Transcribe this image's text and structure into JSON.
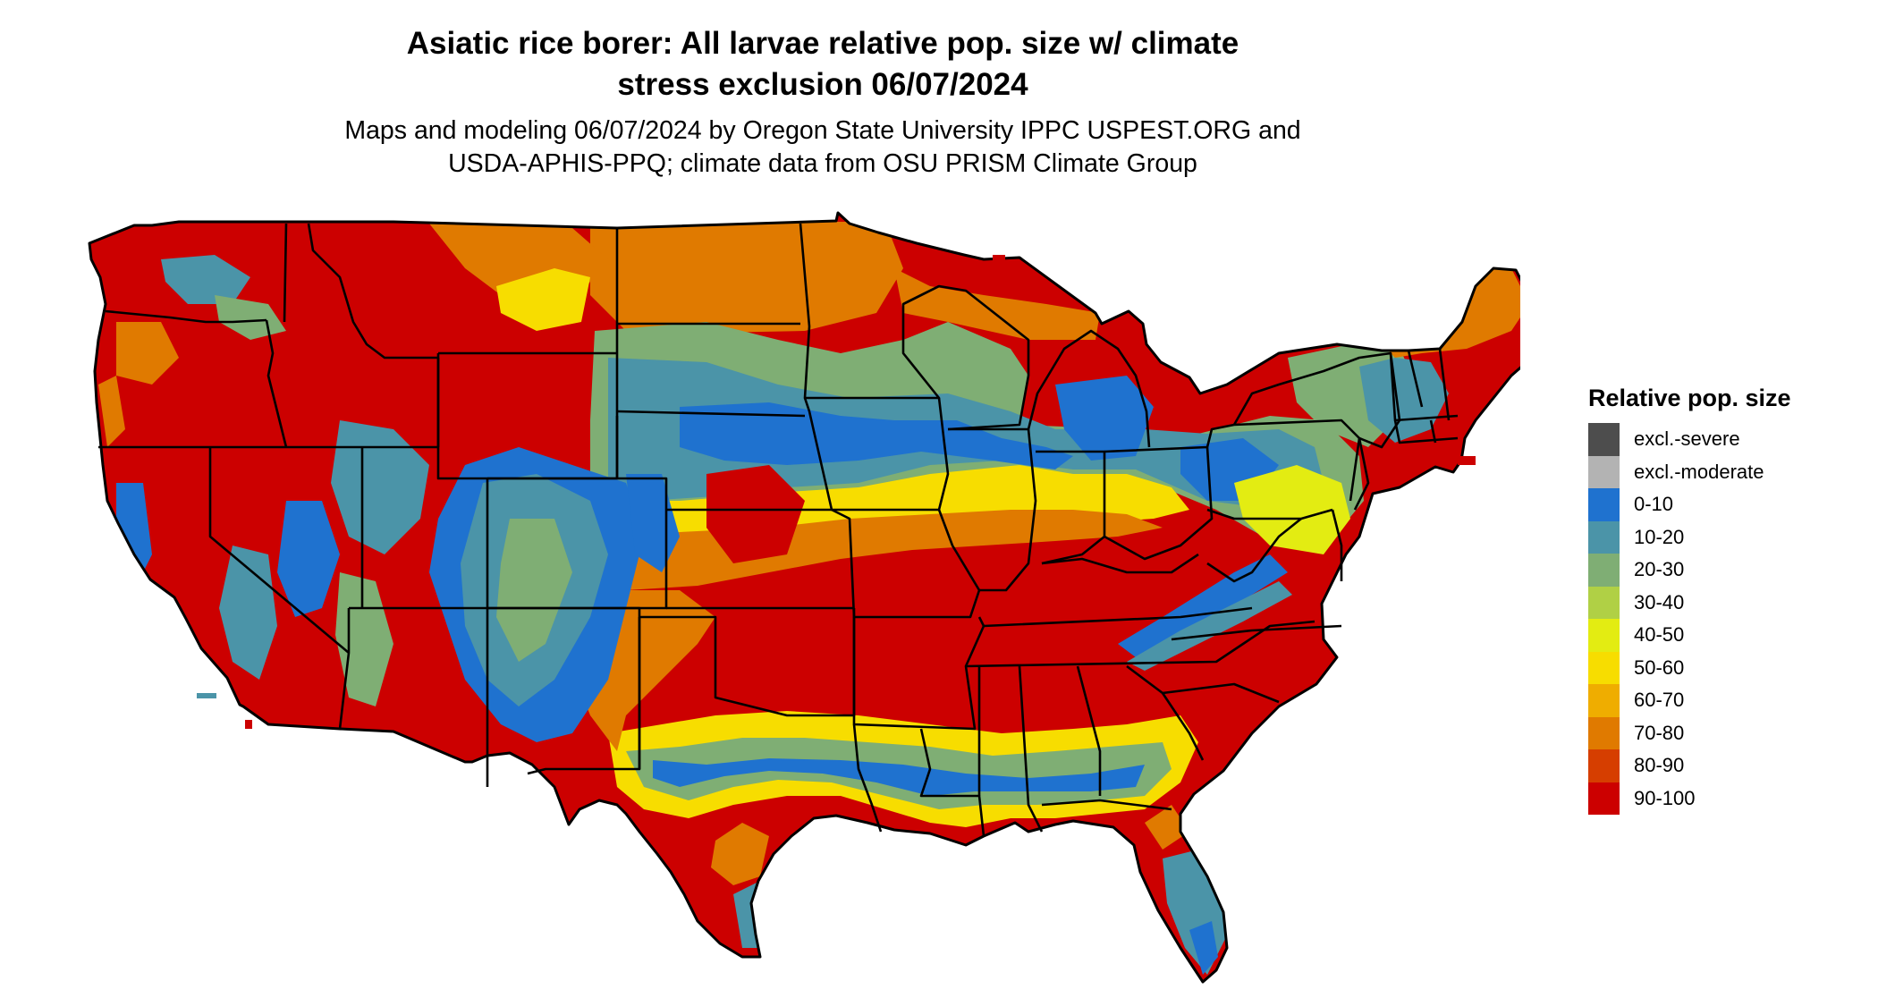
{
  "title_lines": [
    "Asiatic rice borer: All larvae relative pop. size w/ climate",
    "stress exclusion 06/07/2024"
  ],
  "subtitle_lines": [
    "Maps and modeling 06/07/2024 by Oregon State University IPPC USPEST.ORG and",
    "USDA-APHIS-PPQ; climate data from OSU PRISM Climate Group"
  ],
  "legend": {
    "title": "Relative pop. size",
    "items": [
      {
        "label": "excl.-severe",
        "color": "#4d4d4d"
      },
      {
        "label": "excl.-moderate",
        "color": "#b3b3b3"
      },
      {
        "label": "0-10",
        "color": "#1f72cf"
      },
      {
        "label": "10-20",
        "color": "#4b94a8"
      },
      {
        "label": "20-30",
        "color": "#7fae74"
      },
      {
        "label": "30-40",
        "color": "#b0d045"
      },
      {
        "label": "40-50",
        "color": "#e3ec12"
      },
      {
        "label": "50-60",
        "color": "#f7dd00"
      },
      {
        "label": "60-70",
        "color": "#efad00"
      },
      {
        "label": "70-80",
        "color": "#e07a00"
      },
      {
        "label": "80-90",
        "color": "#d63e00"
      },
      {
        "label": "90-100",
        "color": "#cc0000"
      }
    ]
  }
}
